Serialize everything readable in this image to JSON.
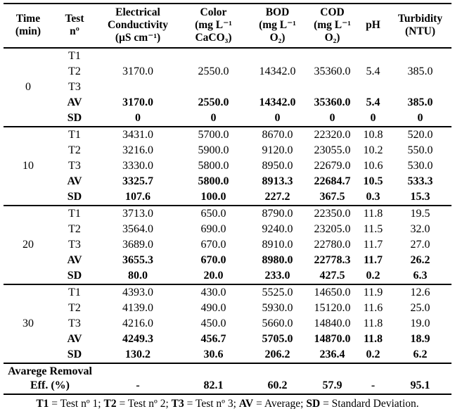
{
  "table": {
    "columns": [
      {
        "key": "time",
        "label": "Time\n(min)"
      },
      {
        "key": "test",
        "label": "Test\nnº"
      },
      {
        "key": "electrical-conductivity",
        "label": "Electrical\nConductivity\n(µS cm⁻¹)"
      },
      {
        "key": "color",
        "label": "Color\n(mg L⁻¹\nCaCO₃)"
      },
      {
        "key": "bod",
        "label": "BOD\n(mg L⁻¹\nO₂)"
      },
      {
        "key": "cod",
        "label": "COD\n(mg L⁻¹\nO₂)"
      },
      {
        "key": "ph",
        "label": "pH"
      },
      {
        "key": "turbidity",
        "label": "Turbidity\n(NTU)"
      }
    ],
    "blocks": [
      {
        "time": "0",
        "rows": [
          {
            "test": "T1",
            "bold": false,
            "values": [
              "",
              "",
              "",
              "",
              "",
              ""
            ]
          },
          {
            "test": "T2",
            "bold": false,
            "values": [
              "3170.0",
              "2550.0",
              "14342.0",
              "35360.0",
              "5.4",
              "385.0"
            ]
          },
          {
            "test": "T3",
            "bold": false,
            "values": [
              "",
              "",
              "",
              "",
              "",
              ""
            ]
          },
          {
            "test": "AV",
            "bold": true,
            "values": [
              "3170.0",
              "2550.0",
              "14342.0",
              "35360.0",
              "5.4",
              "385.0"
            ]
          },
          {
            "test": "SD",
            "bold": true,
            "values": [
              "0",
              "0",
              "0",
              "0",
              "0",
              "0"
            ]
          }
        ]
      },
      {
        "time": "10",
        "rows": [
          {
            "test": "T1",
            "bold": false,
            "values": [
              "3431.0",
              "5700.0",
              "8670.0",
              "22320.0",
              "10.8",
              "520.0"
            ]
          },
          {
            "test": "T2",
            "bold": false,
            "values": [
              "3216.0",
              "5900.0",
              "9120.0",
              "23055.0",
              "10.2",
              "550.0"
            ]
          },
          {
            "test": "T3",
            "bold": false,
            "values": [
              "3330.0",
              "5800.0",
              "8950.0",
              "22679.0",
              "10.6",
              "530.0"
            ]
          },
          {
            "test": "AV",
            "bold": true,
            "values": [
              "3325.7",
              "5800.0",
              "8913.3",
              "22684.7",
              "10.5",
              "533.3"
            ]
          },
          {
            "test": "SD",
            "bold": true,
            "values": [
              "107.6",
              "100.0",
              "227.2",
              "367.5",
              "0.3",
              "15.3"
            ]
          }
        ]
      },
      {
        "time": "20",
        "rows": [
          {
            "test": "T1",
            "bold": false,
            "values": [
              "3713.0",
              "650.0",
              "8790.0",
              "22350.0",
              "11.8",
              "19.5"
            ]
          },
          {
            "test": "T2",
            "bold": false,
            "values": [
              "3564.0",
              "690.0",
              "9240.0",
              "23205.0",
              "11.5",
              "32.0"
            ]
          },
          {
            "test": "T3",
            "bold": false,
            "values": [
              "3689.0",
              "670.0",
              "8910.0",
              "22780.0",
              "11.7",
              "27.0"
            ]
          },
          {
            "test": "AV",
            "bold": true,
            "values": [
              "3655.3",
              "670.0",
              "8980.0",
              "22778.3",
              "11.7",
              "26.2"
            ]
          },
          {
            "test": "SD",
            "bold": true,
            "values": [
              "80.0",
              "20.0",
              "233.0",
              "427.5",
              "0.2",
              "6.3"
            ]
          }
        ]
      },
      {
        "time": "30",
        "rows": [
          {
            "test": "T1",
            "bold": false,
            "values": [
              "4393.0",
              "430.0",
              "5525.0",
              "14650.0",
              "11.9",
              "12.6"
            ]
          },
          {
            "test": "T2",
            "bold": false,
            "values": [
              "4139.0",
              "490.0",
              "5930.0",
              "15120.0",
              "11.6",
              "25.0"
            ]
          },
          {
            "test": "T3",
            "bold": false,
            "values": [
              "4216.0",
              "450.0",
              "5660.0",
              "14840.0",
              "11.8",
              "19.0"
            ]
          },
          {
            "test": "AV",
            "bold": true,
            "values": [
              "4249.3",
              "456.7",
              "5705.0",
              "14870.0",
              "11.8",
              "18.9"
            ]
          },
          {
            "test": "SD",
            "bold": true,
            "values": [
              "130.2",
              "30.6",
              "206.2",
              "236.4",
              "0.2",
              "6.2"
            ]
          }
        ]
      }
    ],
    "summary_row": {
      "label": "Avarege Removal\nEff. (%)",
      "values": [
        "-",
        "82.1",
        "60.2",
        "57.9",
        "-",
        "95.1"
      ]
    },
    "footnote_parts": [
      {
        "text": "T1",
        "bold": true
      },
      {
        "text": " = Test nº 1; ",
        "bold": false
      },
      {
        "text": "T2",
        "bold": true
      },
      {
        "text": " = Test nº 2; ",
        "bold": false
      },
      {
        "text": "T3",
        "bold": true
      },
      {
        "text": " = Test nº 3; ",
        "bold": false
      },
      {
        "text": "AV",
        "bold": true
      },
      {
        "text": " = Average; ",
        "bold": false
      },
      {
        "text": "SD",
        "bold": true
      },
      {
        "text": " = Standard Deviation.",
        "bold": false
      }
    ]
  }
}
